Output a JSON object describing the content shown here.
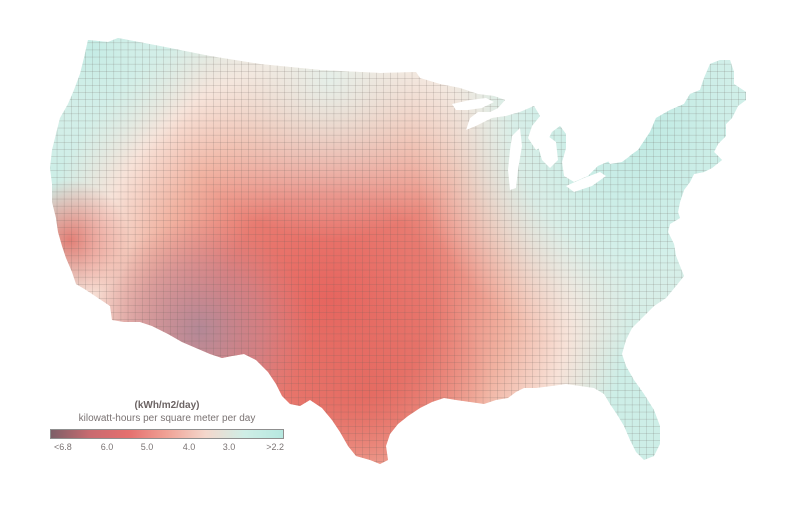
{
  "legend": {
    "title": "(kWh/m2/day)",
    "subtitle": "kilowatt-hours per square meter per day",
    "ticks": [
      "<6.8",
      "6.0",
      "5.0",
      "4.0",
      "3.0",
      ">2.2"
    ],
    "gradient": [
      "#7d5f68",
      "#c86a70",
      "#e56f6e",
      "#f0a296",
      "#f4d7cc",
      "#cfeee6",
      "#b6e8e0"
    ]
  },
  "map": {
    "region": "Contiguous United States",
    "colors": {
      "high": "#e0766c",
      "peak": "#e7655f",
      "purple": "#b78592",
      "mid": "#f2b5a4",
      "light": "#f6ddd1",
      "low": "#c9eee7",
      "grid_line": "#6b5f5a"
    }
  }
}
